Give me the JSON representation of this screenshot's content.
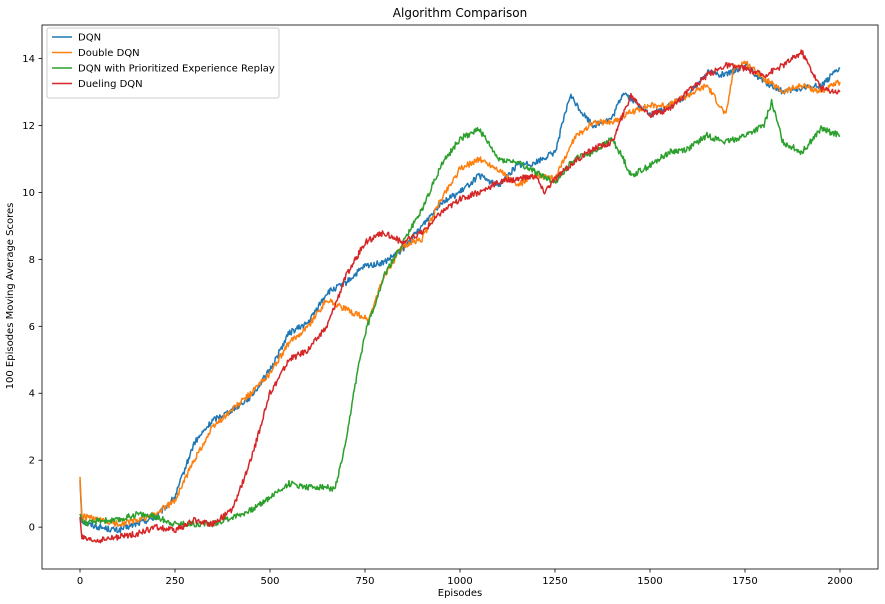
{
  "chart_data": {
    "type": "line",
    "title": "Algorithm Comparison",
    "xlabel": "Episodes",
    "ylabel": "100 Episodes Moving Average Scores",
    "xlim": [
      -100,
      2100
    ],
    "ylim": [
      -1.25,
      15
    ],
    "xticks": [
      0,
      250,
      500,
      750,
      1000,
      1250,
      1500,
      1750,
      2000
    ],
    "yticks": [
      0,
      2,
      4,
      6,
      8,
      10,
      12,
      14
    ],
    "grid": false,
    "legend_position": "top-left",
    "series": [
      {
        "name": "DQN",
        "color": "#1f77b4",
        "x": [
          0,
          5,
          20,
          50,
          100,
          150,
          200,
          250,
          300,
          350,
          400,
          450,
          500,
          550,
          600,
          650,
          700,
          750,
          800,
          850,
          900,
          950,
          1000,
          1050,
          1100,
          1150,
          1200,
          1250,
          1290,
          1320,
          1350,
          1400,
          1430,
          1460,
          1500,
          1550,
          1600,
          1650,
          1700,
          1750,
          1800,
          1850,
          1900,
          1950,
          2000
        ],
        "y": [
          1.4,
          0.2,
          0.1,
          0.0,
          -0.1,
          0.1,
          0.3,
          0.9,
          2.5,
          3.2,
          3.5,
          3.9,
          4.7,
          5.8,
          6.1,
          7.0,
          7.3,
          7.8,
          7.9,
          8.3,
          9.0,
          9.7,
          10.0,
          10.5,
          10.2,
          10.8,
          10.9,
          11.2,
          12.9,
          12.4,
          12.0,
          12.2,
          13.0,
          12.7,
          12.3,
          12.6,
          12.9,
          13.6,
          13.5,
          13.8,
          13.3,
          13.0,
          13.1,
          13.2,
          13.7
        ]
      },
      {
        "name": "Double DQN",
        "color": "#ff7f0e",
        "x": [
          0,
          5,
          20,
          50,
          100,
          150,
          200,
          250,
          300,
          350,
          400,
          450,
          500,
          550,
          600,
          650,
          700,
          760,
          800,
          850,
          900,
          950,
          1000,
          1050,
          1100,
          1150,
          1200,
          1250,
          1300,
          1350,
          1400,
          1450,
          1500,
          1550,
          1600,
          1650,
          1700,
          1720,
          1750,
          1800,
          1850,
          1900,
          1950,
          2000
        ],
        "y": [
          1.5,
          0.3,
          0.3,
          0.2,
          0.1,
          0.2,
          0.4,
          0.8,
          2.0,
          3.0,
          3.5,
          4.0,
          4.6,
          5.5,
          6.0,
          6.8,
          6.5,
          6.2,
          7.5,
          8.4,
          8.6,
          9.8,
          10.7,
          11.0,
          10.7,
          10.2,
          10.5,
          10.4,
          11.6,
          12.1,
          12.1,
          12.4,
          12.6,
          12.6,
          12.9,
          13.2,
          12.3,
          13.7,
          13.9,
          13.4,
          13.0,
          13.2,
          13.0,
          13.3
        ]
      },
      {
        "name": "DQN with Prioritized Experience Replay",
        "color": "#2ca02c",
        "x": [
          0,
          5,
          20,
          50,
          100,
          150,
          200,
          250,
          300,
          350,
          400,
          450,
          500,
          550,
          600,
          650,
          670,
          700,
          720,
          750,
          780,
          800,
          850,
          900,
          950,
          1000,
          1050,
          1100,
          1150,
          1200,
          1250,
          1300,
          1350,
          1400,
          1430,
          1450,
          1500,
          1550,
          1600,
          1650,
          1700,
          1750,
          1800,
          1820,
          1850,
          1900,
          1950,
          2000
        ],
        "y": [
          0.4,
          0.2,
          0.1,
          0.2,
          0.2,
          0.4,
          0.3,
          0.1,
          0.1,
          0.1,
          0.3,
          0.5,
          0.9,
          1.3,
          1.2,
          1.2,
          1.1,
          2.5,
          4.0,
          5.8,
          6.8,
          7.5,
          8.5,
          9.5,
          10.8,
          11.6,
          11.9,
          11.0,
          10.9,
          10.6,
          10.3,
          11.0,
          11.2,
          11.6,
          11.0,
          10.5,
          10.8,
          11.2,
          11.3,
          11.7,
          11.5,
          11.7,
          12.0,
          12.7,
          11.5,
          11.2,
          11.9,
          11.7
        ]
      },
      {
        "name": "Dueling DQN",
        "color": "#d62728",
        "x": [
          0,
          5,
          20,
          50,
          100,
          150,
          200,
          250,
          300,
          350,
          400,
          450,
          500,
          550,
          600,
          650,
          700,
          750,
          800,
          850,
          900,
          950,
          1000,
          1050,
          1100,
          1150,
          1200,
          1220,
          1250,
          1300,
          1350,
          1400,
          1450,
          1500,
          1550,
          1600,
          1650,
          1700,
          1750,
          1800,
          1850,
          1900,
          1950,
          2000
        ],
        "y": [
          0.3,
          -0.3,
          -0.4,
          -0.4,
          -0.3,
          -0.2,
          0.0,
          -0.1,
          0.2,
          0.1,
          0.5,
          2.0,
          4.0,
          5.0,
          5.3,
          6.0,
          7.5,
          8.5,
          8.8,
          8.5,
          8.8,
          9.4,
          9.8,
          10.0,
          10.3,
          10.4,
          10.5,
          10.0,
          10.4,
          10.9,
          11.3,
          11.5,
          12.9,
          12.3,
          12.5,
          13.0,
          13.5,
          13.8,
          13.7,
          13.5,
          13.8,
          14.2,
          13.1,
          13.0
        ]
      }
    ]
  }
}
